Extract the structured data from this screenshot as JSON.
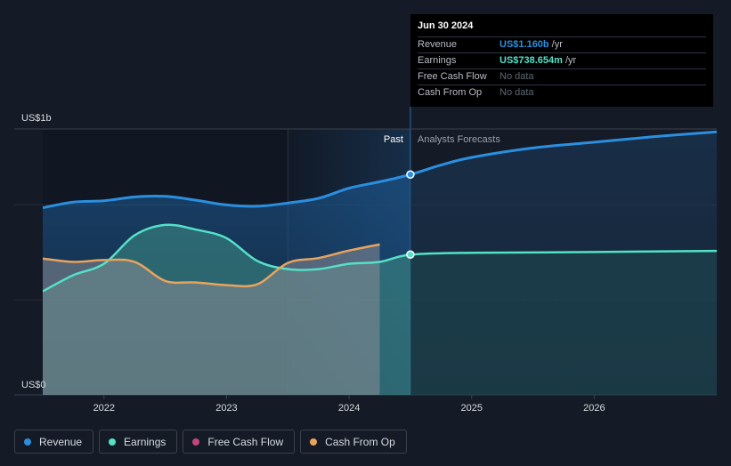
{
  "chart_data": {
    "type": "area",
    "y_axis": {
      "top_label": "US$1b",
      "bottom_label": "US$0",
      "ylim": [
        0,
        1400
      ]
    },
    "x_axis": {
      "ticks": [
        "2022",
        "2023",
        "2024",
        "2025",
        "2026"
      ],
      "xlim": [
        2021.5,
        2027.0
      ]
    },
    "past_label": "Past",
    "forecast_label": "Analysts Forecasts",
    "past_end_x": 2024.5,
    "series": [
      {
        "name": "Revenue",
        "color": "#2b8fe0",
        "x": [
          2021.5,
          2021.75,
          2022.0,
          2022.25,
          2022.5,
          2022.75,
          2023.0,
          2023.25,
          2023.5,
          2023.75,
          2024.0,
          2024.25,
          2024.5,
          2024.75,
          2025.0,
          2025.5,
          2026.0,
          2026.5,
          2027.0
        ],
        "y": [
          985,
          1015,
          1022,
          1042,
          1045,
          1025,
          1000,
          993,
          1010,
          1035,
          1088,
          1122,
          1160,
          1210,
          1250,
          1300,
          1330,
          1360,
          1385
        ]
      },
      {
        "name": "Earnings",
        "color": "#54e1c8",
        "x": [
          2021.5,
          2021.75,
          2022.0,
          2022.25,
          2022.5,
          2022.75,
          2023.0,
          2023.25,
          2023.5,
          2023.75,
          2024.0,
          2024.25,
          2024.5,
          2025.0,
          2026.0,
          2027.0
        ],
        "y": [
          545,
          630,
          690,
          840,
          895,
          870,
          825,
          705,
          662,
          662,
          690,
          700,
          738,
          748,
          752,
          758
        ]
      },
      {
        "name": "Free Cash Flow",
        "color": "#c1467f",
        "x": [],
        "y": []
      },
      {
        "name": "Cash From Op",
        "color": "#e8a45c",
        "x": [
          2021.5,
          2021.75,
          2022.0,
          2022.25,
          2022.5,
          2022.75,
          2023.0,
          2023.25,
          2023.5,
          2023.75,
          2024.0,
          2024.25
        ],
        "y": [
          718,
          700,
          710,
          700,
          600,
          592,
          578,
          582,
          695,
          720,
          760,
          792
        ]
      }
    ],
    "highlight_points": [
      {
        "series": "Revenue",
        "x": 2024.5,
        "y": 1160
      },
      {
        "series": "Earnings",
        "x": 2024.5,
        "y": 738.654
      }
    ]
  },
  "tooltip": {
    "date": "Jun 30 2024",
    "rows": [
      {
        "name": "Revenue",
        "value": "US$1.160b",
        "unit": "/yr",
        "color": "#2b8fe0"
      },
      {
        "name": "Earnings",
        "value": "US$738.654m",
        "unit": "/yr",
        "color": "#54e1c8"
      },
      {
        "name": "Free Cash Flow",
        "value": "No data",
        "unit": "",
        "color": "#5f6673"
      },
      {
        "name": "Cash From Op",
        "value": "No data",
        "unit": "",
        "color": "#5f6673"
      }
    ]
  },
  "legend": [
    {
      "label": "Revenue",
      "color": "#2b8fe0"
    },
    {
      "label": "Earnings",
      "color": "#54e1c8"
    },
    {
      "label": "Free Cash Flow",
      "color": "#c1467f"
    },
    {
      "label": "Cash From Op",
      "color": "#e8a45c"
    }
  ]
}
